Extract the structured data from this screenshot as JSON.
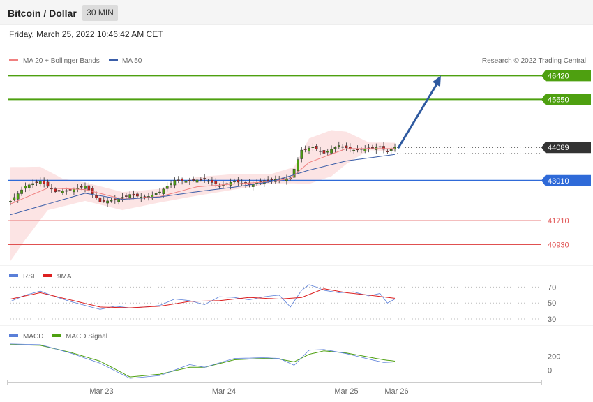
{
  "header": {
    "title": "Bitcoin / Dollar",
    "timeframe": "30 MIN"
  },
  "datetime": "Friday, March 25, 2022 10:46:42 AM CET",
  "copyright": "Research © 2022 Trading Central",
  "colors": {
    "bands": "#f8b8b8",
    "ma20": "#f08080",
    "ma50": "#3a5da8",
    "green": "#4ea010",
    "blue": "#2f6ad8",
    "red": "#e05050",
    "candle_up": "#4ea010",
    "candle_down": "#cc2020",
    "price_tag": "#333333",
    "rsi": "#5a7fd8",
    "rsi_ma": "#dd2020",
    "macd": "#5a7fd8",
    "macd_signal": "#4ea010",
    "arrow": "#2f5aa0"
  },
  "chart_data": [
    {
      "name": "price",
      "type": "candlestick",
      "legend": [
        "MA 20 + Bollinger Bands",
        "MA 50"
      ],
      "ylim": [
        40330,
        47290
      ],
      "last_price": 44089,
      "levels": [
        {
          "value": 46420,
          "label": "46420",
          "kind": "resistance",
          "color": "green"
        },
        {
          "value": 45650,
          "label": "45650",
          "kind": "resistance",
          "color": "green"
        },
        {
          "value": 43010,
          "label": "43010",
          "kind": "pivot",
          "color": "blue"
        },
        {
          "value": 41710,
          "label": "41710",
          "kind": "support",
          "color": "red"
        },
        {
          "value": 40930,
          "label": "40930",
          "kind": "support",
          "color": "red"
        }
      ],
      "price_path": [
        [
          0,
          42340
        ],
        [
          4,
          42830
        ],
        [
          8,
          43000
        ],
        [
          12,
          42650
        ],
        [
          16,
          42700
        ],
        [
          20,
          42840
        ],
        [
          24,
          42320
        ],
        [
          28,
          42380
        ],
        [
          32,
          42560
        ],
        [
          36,
          42450
        ],
        [
          40,
          42640
        ],
        [
          44,
          43020
        ],
        [
          48,
          43000
        ],
        [
          52,
          43060
        ],
        [
          56,
          42840
        ],
        [
          60,
          42990
        ],
        [
          64,
          42870
        ],
        [
          68,
          43010
        ],
        [
          72,
          43060
        ],
        [
          75,
          43080
        ],
        [
          78,
          44000
        ],
        [
          81,
          44100
        ],
        [
          84,
          43900
        ],
        [
          88,
          44150
        ],
        [
          92,
          44000
        ],
        [
          96,
          44060
        ],
        [
          99,
          44100
        ],
        [
          101,
          43950
        ],
        [
          103,
          44089
        ]
      ],
      "ma20_path": [
        [
          0,
          42250
        ],
        [
          10,
          42770
        ],
        [
          20,
          42720
        ],
        [
          30,
          42410
        ],
        [
          40,
          42490
        ],
        [
          50,
          42810
        ],
        [
          60,
          42900
        ],
        [
          70,
          42980
        ],
        [
          75,
          43080
        ],
        [
          80,
          43600
        ],
        [
          90,
          44050
        ],
        [
          103,
          44050
        ]
      ],
      "ma50_path": [
        [
          0,
          41900
        ],
        [
          10,
          42250
        ],
        [
          20,
          42600
        ],
        [
          30,
          42400
        ],
        [
          40,
          42480
        ],
        [
          50,
          42650
        ],
        [
          60,
          42800
        ],
        [
          70,
          42980
        ],
        [
          80,
          43350
        ],
        [
          90,
          43650
        ],
        [
          103,
          43860
        ]
      ],
      "band_upper_path": [
        [
          0,
          43450
        ],
        [
          8,
          43460
        ],
        [
          14,
          43070
        ],
        [
          20,
          42950
        ],
        [
          30,
          42640
        ],
        [
          40,
          42740
        ],
        [
          50,
          43130
        ],
        [
          60,
          43220
        ],
        [
          70,
          43230
        ],
        [
          76,
          43450
        ],
        [
          80,
          44380
        ],
        [
          86,
          44650
        ],
        [
          90,
          44600
        ],
        [
          96,
          44250
        ],
        [
          103,
          44240
        ]
      ],
      "band_lower_path": [
        [
          0,
          40400
        ],
        [
          4,
          41100
        ],
        [
          10,
          42050
        ],
        [
          20,
          42350
        ],
        [
          30,
          42050
        ],
        [
          40,
          42300
        ],
        [
          50,
          42520
        ],
        [
          60,
          42720
        ],
        [
          70,
          42920
        ],
        [
          76,
          42920
        ],
        [
          80,
          42900
        ],
        [
          86,
          43150
        ],
        [
          90,
          43550
        ],
        [
          96,
          44000
        ],
        [
          103,
          43960
        ]
      ],
      "forecast_arrow": {
        "from": [
          104,
          44089
        ],
        "to": [
          114,
          46420
        ]
      }
    },
    {
      "name": "rsi",
      "type": "line",
      "legend": [
        "RSI",
        "9MA"
      ],
      "ticks": [
        70,
        50,
        30
      ],
      "ylim": [
        23,
        80
      ],
      "rsi_path": [
        [
          0,
          52
        ],
        [
          4,
          60
        ],
        [
          8,
          65
        ],
        [
          12,
          58
        ],
        [
          16,
          52
        ],
        [
          20,
          47
        ],
        [
          24,
          42
        ],
        [
          28,
          46
        ],
        [
          32,
          44
        ],
        [
          36,
          45
        ],
        [
          40,
          47
        ],
        [
          44,
          55
        ],
        [
          48,
          53
        ],
        [
          52,
          48
        ],
        [
          56,
          58
        ],
        [
          60,
          57
        ],
        [
          64,
          54
        ],
        [
          68,
          58
        ],
        [
          72,
          60
        ],
        [
          75,
          45
        ],
        [
          78,
          66
        ],
        [
          80,
          73
        ],
        [
          82,
          70
        ],
        [
          84,
          66
        ],
        [
          88,
          63
        ],
        [
          92,
          64
        ],
        [
          96,
          59
        ],
        [
          99,
          62
        ],
        [
          101,
          50
        ],
        [
          103,
          55
        ]
      ],
      "ma_path": [
        [
          0,
          55
        ],
        [
          8,
          63
        ],
        [
          16,
          54
        ],
        [
          24,
          45
        ],
        [
          32,
          44
        ],
        [
          40,
          46
        ],
        [
          48,
          52
        ],
        [
          56,
          53
        ],
        [
          64,
          57
        ],
        [
          72,
          55
        ],
        [
          78,
          57
        ],
        [
          84,
          68
        ],
        [
          90,
          63
        ],
        [
          96,
          60
        ],
        [
          103,
          56
        ]
      ]
    },
    {
      "name": "macd",
      "type": "line",
      "legend": [
        "MACD",
        "MACD Signal"
      ],
      "ticks": [
        200,
        0
      ],
      "ylim": [
        -150,
        430
      ],
      "macd_path": [
        [
          0,
          380
        ],
        [
          8,
          370
        ],
        [
          16,
          250
        ],
        [
          24,
          100
        ],
        [
          32,
          -120
        ],
        [
          40,
          -80
        ],
        [
          48,
          80
        ],
        [
          52,
          40
        ],
        [
          60,
          170
        ],
        [
          68,
          180
        ],
        [
          72,
          170
        ],
        [
          76,
          70
        ],
        [
          80,
          290
        ],
        [
          84,
          300
        ],
        [
          90,
          240
        ],
        [
          96,
          160
        ],
        [
          100,
          110
        ],
        [
          103,
          120
        ]
      ],
      "signal_path": [
        [
          0,
          370
        ],
        [
          8,
          360
        ],
        [
          16,
          260
        ],
        [
          24,
          130
        ],
        [
          32,
          -100
        ],
        [
          40,
          -60
        ],
        [
          48,
          40
        ],
        [
          52,
          40
        ],
        [
          60,
          150
        ],
        [
          68,
          170
        ],
        [
          72,
          160
        ],
        [
          76,
          120
        ],
        [
          80,
          230
        ],
        [
          84,
          280
        ],
        [
          90,
          250
        ],
        [
          96,
          190
        ],
        [
          100,
          150
        ],
        [
          103,
          130
        ]
      ]
    }
  ],
  "x_axis": {
    "ticks": [
      {
        "i": 29,
        "label": "Mar 23"
      },
      {
        "i": 68,
        "label": "Mar 24"
      },
      {
        "i": 107,
        "label": "Mar 25"
      },
      {
        "i": 123,
        "label": "Mar 26"
      }
    ]
  }
}
